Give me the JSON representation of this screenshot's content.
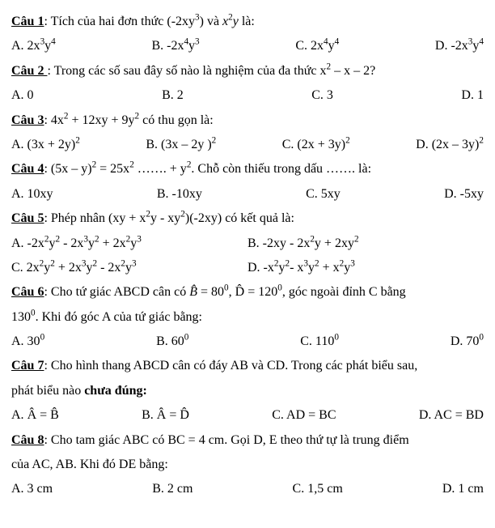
{
  "font_family": "Times New Roman",
  "base_fontsize_pt": 12,
  "text_color": "#000000",
  "background": "#ffffff",
  "questions": [
    {
      "label": "Câu 1",
      "stem_prefix": ": Tích của hai đơn thức (-2xy",
      "stem_sup1": "3",
      "stem_mid1": ") và ",
      "stem_ital": "x",
      "stem_sup2": "2",
      "stem_ital2": "y",
      "stem_suffix": " là:",
      "options_layout": "four",
      "opts": [
        {
          "pre": "A. 2x",
          "s1": "3",
          "mid": "y",
          "s2": "4"
        },
        {
          "pre": "B. -2x",
          "s1": "4",
          "mid": "y",
          "s2": "3"
        },
        {
          "pre": "C. 2x",
          "s1": "4",
          "mid": "y",
          "s2": "4"
        },
        {
          "pre": "D. -2x",
          "s1": "3",
          "mid": "y",
          "s2": "4"
        }
      ]
    },
    {
      "label": "Câu 2 ",
      "stem_prefix": ": Trong các số sau đây số nào là nghiệm của đa thức x",
      "stem_sup1": "2",
      "stem_suffix": " – x – 2?",
      "options_layout": "four",
      "opts_plain": [
        "A. 0",
        "B. 2",
        "C. 3",
        "D. 1"
      ]
    },
    {
      "label": "Câu 3",
      "stem_prefix": ": 4x",
      "stem_sup1": "2",
      "stem_mid1": " + 12xy + 9y",
      "stem_sup2": "2",
      "stem_suffix": "  có thu gọn là:",
      "options_layout": "four",
      "opts": [
        {
          "pre": "A. (3x + 2y)",
          "s1": "2"
        },
        {
          "pre": "B. (3x – 2y )",
          "s1": "2"
        },
        {
          "pre": "C. (2x + 3y)",
          "s1": "2"
        },
        {
          "pre": "D. (2x – 3y)",
          "s1": "2"
        }
      ]
    },
    {
      "label": "Câu 4",
      "stem_prefix": ": (5x – y)",
      "stem_sup1": "2",
      "stem_mid1": " = 25x",
      "stem_sup2": "2",
      "stem_mid2": " ……. + y",
      "stem_sup3": "2",
      "stem_suffix": ". Chỗ còn thiếu trong dấu ……. là:",
      "options_layout": "four",
      "opts_plain": [
        "A. 10xy",
        "B. -10xy",
        "C. 5xy",
        "D. -5xy"
      ]
    },
    {
      "label": "Câu 5",
      "stem_prefix": ": Phép nhân  (xy + x",
      "stem_sup1": "2",
      "stem_mid1": "y - xy",
      "stem_sup2": "2",
      "stem_suffix": ")(-2xy) có kết quả là:",
      "options_layout": "two",
      "opts5": [
        {
          "p": "A. -2x",
          "a": "2",
          "p2": "y",
          "b": "2",
          "p3": " - 2x",
          "c": "3",
          "p4": "y",
          "d": "2",
          "p5": " + 2x",
          "e": "2",
          "p6": "y",
          "f": "3"
        },
        {
          "p": "B. -2xy - 2x",
          "a": "2",
          "p2": "y + 2xy",
          "b": "2"
        },
        {
          "p": "C. 2x",
          "a": "2",
          "p2": "y",
          "b": "2",
          "p3": " + 2x",
          "c": "3",
          "p4": "y",
          "d": "2",
          "p5": " - 2x",
          "e": "2",
          "p6": "y",
          "f": "3"
        },
        {
          "p": "D. -x",
          "a": "2",
          "p2": "y",
          "b": "2",
          "p3": "- x",
          "c": "3",
          "p4": "y",
          "d": "2",
          "p5": " + x",
          "e": "2",
          "p6": "y",
          "f": "3"
        }
      ]
    },
    {
      "label": "Câu 6",
      "stem6_p1": ": Cho tứ giác ABCD cân có ",
      "stem6_b": "B̂",
      "stem6_p2": " = 80",
      "stem6_s1": "0",
      "stem6_p3": ", ",
      "stem6_d": "D̂",
      "stem6_p4": " = 120",
      "stem6_s2": "0",
      "stem6_p5": ", góc ngoài đỉnh C bằng",
      "stem6_line2_p1": "130",
      "stem6_line2_s": "0",
      "stem6_line2_p2": ". Khi đó góc A của tứ giác bằng:",
      "options_layout": "four",
      "opts": [
        {
          "pre": "A. 30",
          "s1": "0"
        },
        {
          "pre": "B. 60",
          "s1": "0"
        },
        {
          "pre": "C. 110",
          "s1": "0"
        },
        {
          "pre": "D. 70",
          "s1": "0"
        }
      ]
    },
    {
      "label": "Câu 7",
      "stem7_p1": ": Cho hình thang ABCD cân có đáy AB và CD. Trong các phát biểu sau,",
      "stem7_p2": "phát biểu nào ",
      "stem7_bold": "chưa đúng:",
      "options_layout": "four",
      "opts7": [
        {
          "p": "A.  ",
          "h": "Â = B̂"
        },
        {
          "p": "B.  ",
          "h": "Â = D̂"
        },
        {
          "p": "C. AD = BC"
        },
        {
          "p": "D. AC = BD"
        }
      ]
    },
    {
      "label": "Câu 8",
      "stem8_p1": ": Cho tam giác ABC có BC = 4 cm. Gọi D, E theo thứ tự  là trung điểm",
      "stem8_p2": "của AC, AB. Khi đó DE bằng:",
      "options_layout": "four",
      "opts_plain": [
        "A. 3 cm",
        "B. 2 cm",
        "C. 1,5 cm",
        "D. 1 cm"
      ]
    }
  ]
}
